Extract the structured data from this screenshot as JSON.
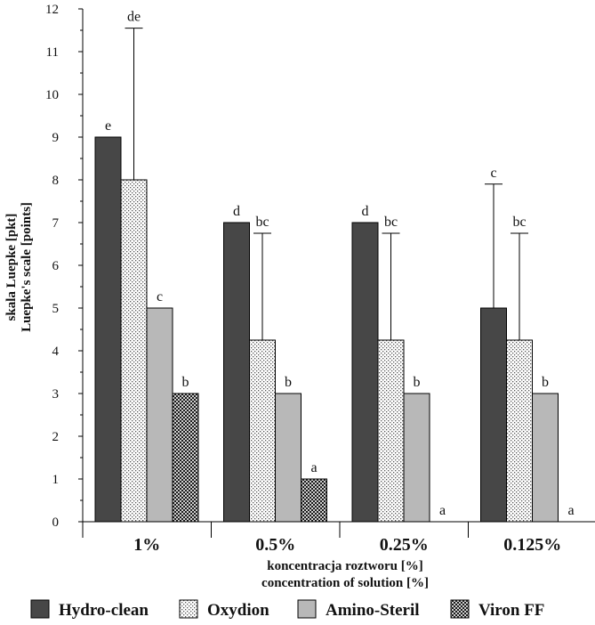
{
  "chart_data": {
    "type": "bar",
    "ylabel_pl": "skala Luepke [pkt]",
    "ylabel_en": "Luepke's scale [points]",
    "xlabel_pl": "koncentracja roztworu [%]",
    "xlabel_en": "concentration of solution [%]",
    "ylim": [
      0,
      12
    ],
    "yticks": [
      "0",
      "1",
      "2",
      "3",
      "4",
      "5",
      "6",
      "7",
      "8",
      "9",
      "10",
      "11",
      "12"
    ],
    "categories": [
      "1%",
      "0.5%",
      "0.25%",
      "0.125%"
    ],
    "series": [
      {
        "name": "Hydro-clean",
        "fill": "dark",
        "values": [
          9,
          7,
          7,
          5
        ],
        "err": [
          null,
          null,
          null,
          7.9
        ],
        "letters": [
          "e",
          "d",
          "d",
          "c"
        ]
      },
      {
        "name": "Oxydion",
        "fill": "dotted",
        "values": [
          8,
          4.25,
          4.25,
          4.25
        ],
        "err": [
          11.55,
          6.75,
          6.75,
          6.75
        ],
        "letters": [
          "de",
          "bc",
          "bc",
          "bc"
        ]
      },
      {
        "name": "Amino-Steril",
        "fill": "light",
        "values": [
          5,
          3,
          3,
          3
        ],
        "err": [
          null,
          null,
          null,
          null
        ],
        "letters": [
          "c",
          "b",
          "b",
          "b"
        ]
      },
      {
        "name": "Viron FF",
        "fill": "checker",
        "values": [
          3,
          1,
          0,
          0
        ],
        "err": [
          null,
          null,
          null,
          null
        ],
        "letters": [
          "b",
          "a",
          "a",
          "a"
        ]
      }
    ],
    "grid": false,
    "legend_position": "bottom"
  }
}
